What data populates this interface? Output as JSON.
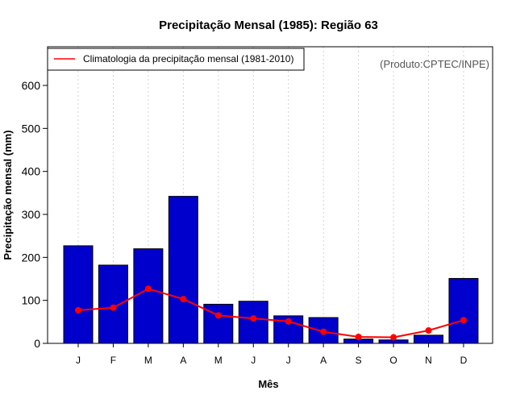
{
  "chart_data": {
    "type": "bar",
    "title": "Precipitação Mensal (1985): Região 63",
    "xlabel": "Mês",
    "ylabel": "Precipitação mensal (mm)",
    "categories": [
      "J",
      "F",
      "M",
      "A",
      "M",
      "J",
      "J",
      "A",
      "S",
      "O",
      "N",
      "D"
    ],
    "ylim": [
      0,
      690
    ],
    "yticks": [
      0,
      100,
      200,
      300,
      400,
      500,
      600
    ],
    "series": [
      {
        "name": "Precipitação mensal 1985",
        "type": "bar",
        "color": "#0000CD",
        "values": [
          227,
          182,
          220,
          342,
          91,
          98,
          64,
          60,
          10,
          8,
          19,
          151
        ]
      },
      {
        "name": "Climatologia da precipitação mensal (1981-2010)",
        "type": "line",
        "color": "#FF0000",
        "values": [
          77,
          83,
          127,
          103,
          65,
          58,
          51,
          27,
          15,
          14,
          30,
          54
        ]
      }
    ],
    "legend": {
      "position": "top-left",
      "entries": [
        "Climatologia da precipitação mensal (1981-2010)"
      ]
    },
    "credit": "(Produto:CPTEC/INPE)",
    "grid": "vertical-dotted"
  }
}
